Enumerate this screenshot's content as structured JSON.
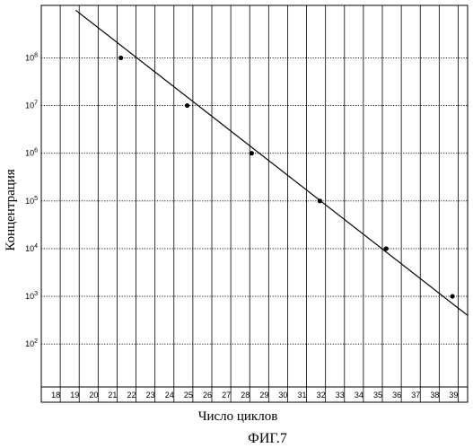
{
  "chart_data": {
    "type": "scatter",
    "xlabel": "Число циклов",
    "ylabel": "Концентрация",
    "x_ticks": [
      18,
      19,
      20,
      21,
      22,
      23,
      24,
      25,
      26,
      27,
      28,
      29,
      30,
      31,
      32,
      33,
      34,
      35,
      36,
      37,
      38,
      39
    ],
    "xlim": [
      17,
      39.5
    ],
    "y_scale": "log",
    "y_tick_exponents": [
      2,
      3,
      4,
      5,
      6,
      7,
      8
    ],
    "y_tick_base": "10",
    "ylim_exponents": [
      1.1,
      9.1
    ],
    "grid": true,
    "points": [
      {
        "x": 21.2,
        "y": 100000000
      },
      {
        "x": 24.7,
        "y": 10000000
      },
      {
        "x": 28.1,
        "y": 1000000
      },
      {
        "x": 31.7,
        "y": 100000
      },
      {
        "x": 35.2,
        "y": 10000
      },
      {
        "x": 38.7,
        "y": 1000
      }
    ],
    "fit_line": {
      "x": [
        18.1,
        39.5
      ],
      "y_exponent": [
        9.0,
        2.6
      ]
    }
  },
  "caption": "ФИГ.7"
}
